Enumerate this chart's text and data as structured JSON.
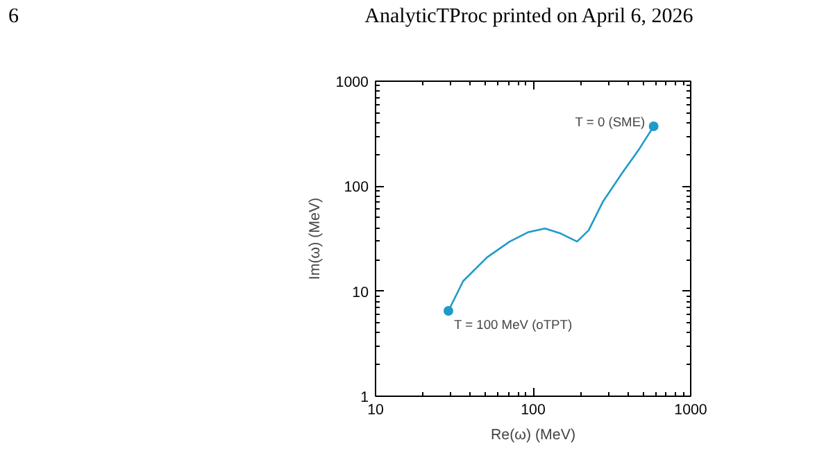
{
  "chart_data": {
    "type": "line",
    "title": "AnalyticTProc printed on April 6, 2026",
    "annotations": [
      "6",
      {
        "text": "T = 100 MeV (oTPT)",
        "x": 29,
        "y": 6.5
      },
      {
        "text": "T = 0 (SME)",
        "x": 582,
        "y": 372
      }
    ],
    "xlabel": "Re(ω) (MeV)",
    "ylabel": "Im(ω) (MeV)",
    "log": "xy",
    "grid": false,
    "xlim": [
      10,
      1000
    ],
    "ylim": [
      1,
      1000
    ],
    "xticks": [
      10,
      100,
      1000
    ],
    "yticks": [
      1,
      10,
      100,
      1000
    ],
    "series": [
      {
        "color": "#1f9bc9",
        "marker": "none",
        "x": [
          29,
          36,
          51,
          71,
          93,
          119,
          150,
          190,
          225,
          277,
          363,
          474,
          582
        ],
        "values": [
          6.5,
          12.5,
          21,
          29.7,
          36.5,
          39.6,
          35.4,
          29.7,
          38,
          71,
          130,
          229,
          372
        ]
      },
      {
        "type": "scatter",
        "color": "#1f9bc9",
        "marker": "circle",
        "x": [
          29
        ],
        "values": [
          6.5
        ]
      },
      {
        "type": "scatter",
        "color": "#1f9bc9",
        "marker": "circle",
        "x": [
          582
        ],
        "values": [
          372
        ]
      }
    ]
  }
}
